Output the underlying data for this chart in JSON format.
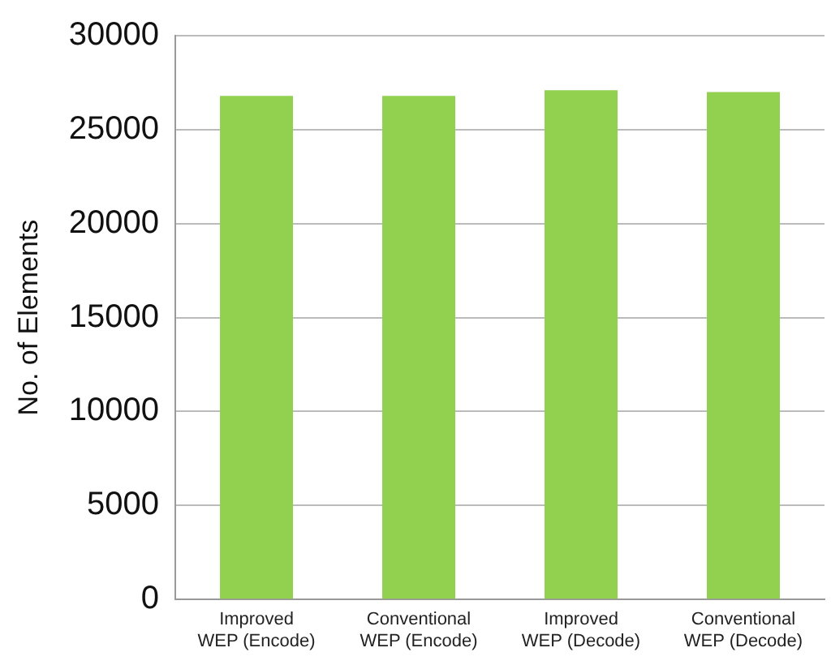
{
  "chart_data": {
    "type": "bar",
    "ylabel": "No. of Elements",
    "categories": [
      "Improved WEP (Encode)",
      "Conventional WEP (Encode)",
      "Improved WEP (Decode)",
      "Conventional WEP (Decode)"
    ],
    "values": [
      26800,
      26800,
      27100,
      27000
    ],
    "color": "#92d050",
    "ylim": [
      0,
      30000
    ],
    "yticks": [
      0,
      5000,
      10000,
      15000,
      20000,
      25000,
      30000
    ],
    "grid": "y"
  }
}
